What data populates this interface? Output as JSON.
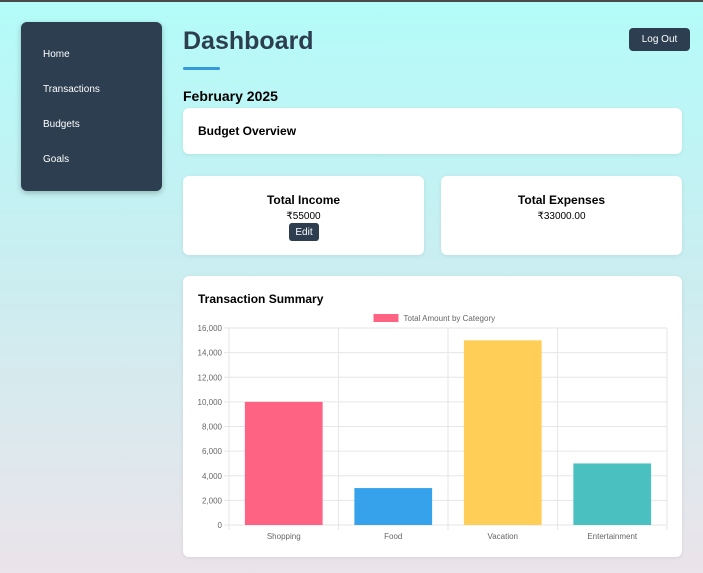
{
  "sidebar": {
    "items": [
      {
        "label": "Home"
      },
      {
        "label": "Transactions"
      },
      {
        "label": "Budgets"
      },
      {
        "label": "Goals"
      }
    ]
  },
  "header": {
    "title": "Dashboard",
    "logout_label": "Log Out"
  },
  "month": "February 2025",
  "budget_overview": {
    "heading": "Budget Overview"
  },
  "income": {
    "title": "Total Income",
    "value": "₹55000",
    "edit_label": "Edit"
  },
  "expenses": {
    "title": "Total Expenses",
    "value": "₹33000.00"
  },
  "transaction_summary": {
    "heading": "Transaction Summary"
  },
  "colors": {
    "sidebar": "#2c3e50",
    "accent": "#3498db",
    "shopping": "#ff6384",
    "food": "#36a2eb",
    "vacation": "#ffce56",
    "entertainment": "#4bc0c0"
  },
  "chart_data": {
    "type": "bar",
    "categories": [
      "Shopping",
      "Food",
      "Vacation",
      "Entertainment"
    ],
    "series": [
      {
        "name": "Total Amount by Category",
        "values": [
          10000,
          3000,
          15000,
          5000
        ]
      }
    ],
    "bar_colors": [
      "#ff6384",
      "#36a2eb",
      "#ffce56",
      "#4bc0c0"
    ],
    "ylim": [
      0,
      16000
    ],
    "yticks": [
      "0",
      "2,000",
      "4,000",
      "6,000",
      "8,000",
      "10,000",
      "12,000",
      "14,000",
      "16,000"
    ],
    "legend_position": "top-center",
    "grid": true
  }
}
